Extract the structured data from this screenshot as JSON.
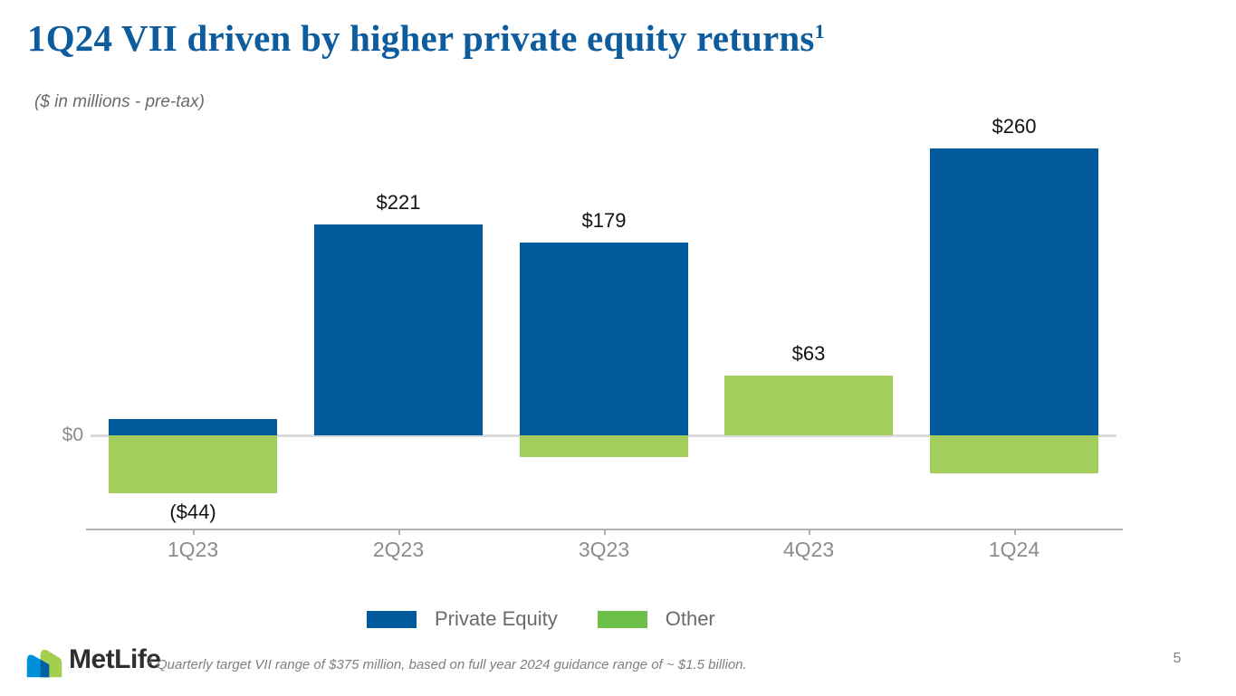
{
  "slide": {
    "title_text": "1Q24 VII driven by higher private equity returns",
    "title_superscript": "1",
    "subtitle": "($ in millions - pre-tax)",
    "page_number": "5",
    "footnote_superscript": "1",
    "footnote_text": "Quarterly target VII range of $375 million, based on full year 2024 guidance range of ~ $1.5 billion.",
    "logo_text": "MetLife"
  },
  "colors": {
    "title_blue": "#0D5C9E",
    "private_equity_bar": "#005A9C",
    "other_bar": "#A4CE5B",
    "legend_private_equity": "#005A9C",
    "legend_other": "#6CC04A",
    "logo_light_blue": "#0090DA",
    "logo_dark_blue": "#0061A0",
    "logo_green": "#A4CE4E"
  },
  "chart_data": {
    "type": "bar",
    "stacked": true,
    "title": "1Q24 VII driven by higher private equity returns",
    "units_note": "($ in millions - pre-tax)",
    "categories": [
      "1Q23",
      "2Q23",
      "3Q23",
      "4Q23",
      "1Q24"
    ],
    "series": [
      {
        "name": "Private Equity",
        "color_key": "private_equity_bar",
        "values_estimated_from_bars": true,
        "values": [
          17,
          221,
          202,
          0,
          300
        ]
      },
      {
        "name": "Other",
        "color_key": "other_bar",
        "values_estimated_from_bars": true,
        "values": [
          -61,
          0,
          -23,
          63,
          -40
        ]
      }
    ],
    "net_values": [
      -44,
      221,
      179,
      63,
      260
    ],
    "net_labels": [
      "($44)",
      "$221",
      "$179",
      "$63",
      "$260"
    ],
    "y_axis": {
      "zero_label": "$0",
      "gridlines": false
    },
    "legend": {
      "position": "bottom-center",
      "items": [
        {
          "label": "Private Equity",
          "color_key": "legend_private_equity"
        },
        {
          "label": "Other",
          "color_key": "legend_other"
        }
      ]
    }
  }
}
